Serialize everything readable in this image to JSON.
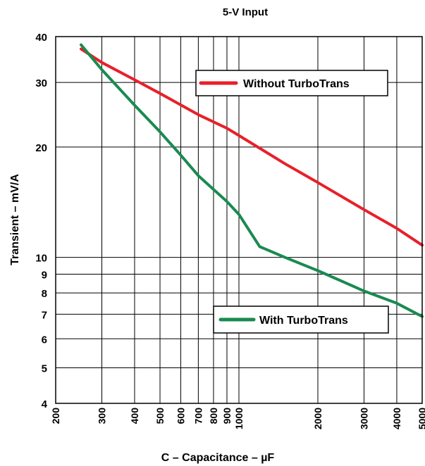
{
  "chart_data": {
    "type": "line",
    "title": "5-V Input",
    "xlabel": "C – Capacitance – µF",
    "ylabel": "Transient – mV/A",
    "x_scale": "log",
    "y_scale": "log",
    "xlim": [
      200,
      5000
    ],
    "ylim": [
      4,
      40
    ],
    "grid": true,
    "x_ticks": [
      200,
      300,
      400,
      500,
      600,
      700,
      800,
      900,
      1000,
      2000,
      3000,
      4000,
      5000
    ],
    "x_tick_labels": [
      "200",
      "300",
      "400",
      "500",
      "600",
      "700",
      "800",
      "900",
      "1000",
      "2000",
      "3000",
      "4000",
      "5000"
    ],
    "y_ticks": [
      4,
      5,
      6,
      7,
      8,
      9,
      10,
      20,
      30,
      40
    ],
    "y_tick_labels": [
      "4",
      "5",
      "6",
      "7",
      "8",
      "9",
      "10",
      "20",
      "30",
      "40"
    ],
    "series": [
      {
        "name": "Without TurboTrans",
        "color": "#e8202a",
        "x": [
          250,
          300,
          400,
          500,
          700,
          900,
          1000,
          1500,
          2000,
          3000,
          4000,
          5000
        ],
        "y": [
          37,
          34,
          30.5,
          28,
          24.5,
          22.5,
          21.5,
          18,
          16,
          13.5,
          12,
          10.8
        ]
      },
      {
        "name": "With TurboTrans",
        "color": "#1a8a50",
        "x": [
          250,
          300,
          400,
          500,
          600,
          700,
          900,
          1000,
          1200,
          1500,
          2000,
          3000,
          4000,
          5000
        ],
        "y": [
          38,
          32.5,
          26,
          22,
          19,
          16.7,
          14.2,
          13.1,
          10.7,
          10,
          9.2,
          8.1,
          7.5,
          6.9
        ]
      }
    ],
    "legend": "inside"
  }
}
